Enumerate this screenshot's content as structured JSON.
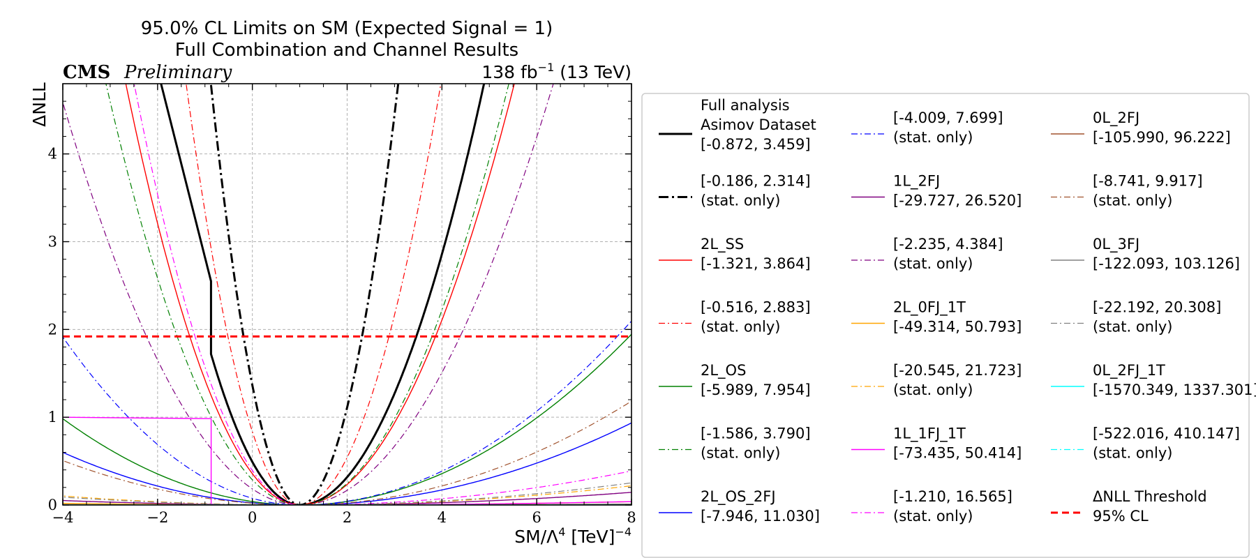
{
  "chart_data": {
    "type": "line",
    "title": "95.0% CL Limits on SM (Expected Signal = 1)",
    "subtitle": "Full Combination and Channel Results",
    "experiment": "CMS",
    "status": "Preliminary",
    "lumi": "138 fb",
    "lumi_exp": "−1",
    "energy": "(13 TeV)",
    "xlabel": "SM/Λ",
    "xlabel_exp": "4",
    "xlabel_unit": "[TeV]",
    "xlabel_unit_exp": "−4",
    "ylabel": "ΔNLL",
    "xlim": [
      -4,
      8
    ],
    "ylim": [
      0,
      4.8
    ],
    "xticks": [
      -4,
      -2,
      0,
      2,
      4,
      6,
      8
    ],
    "yticks": [
      0,
      1,
      2,
      3,
      4
    ],
    "xtick_labels": [
      "−4",
      "−2",
      "0",
      "2",
      "4",
      "6",
      "8"
    ],
    "ytick_labels": [
      "0",
      "1",
      "2",
      "3",
      "4"
    ],
    "grid": true,
    "legend_position": "right, outside plot",
    "threshold": {
      "value": 1.92,
      "label": "ΔNLL Threshold",
      "sublabel": "95% CL",
      "color": "#ff0000"
    },
    "best_fit": 1.0,
    "series": [
      {
        "name": "Full analysis",
        "name2": "Asimov Dataset",
        "interval": "[-0.872, 3.459]",
        "low": -0.872,
        "high": 3.459,
        "color": "#000000",
        "style": "solid",
        "width": 3,
        "kink": {
          "x": -0.872,
          "y_top": 2.55,
          "y_bottom": 1.72
        }
      },
      {
        "name": "",
        "interval": "[-0.186, 2.314]",
        "low": -0.186,
        "high": 2.314,
        "color": "#000000",
        "style": "dashdot",
        "width": 3,
        "stat_only": "(stat. only)"
      },
      {
        "name": "2L_SS",
        "interval": "[-1.321, 3.864]",
        "low": -1.321,
        "high": 3.864,
        "color": "#ff0000",
        "style": "solid",
        "width": 1.4
      },
      {
        "name": "",
        "interval": "[-0.516, 2.883]",
        "low": -0.516,
        "high": 2.883,
        "color": "#ff0000",
        "style": "dashdot",
        "width": 1.2,
        "stat_only": "(stat. only)"
      },
      {
        "name": "2L_OS",
        "interval": "[-5.989, 7.954]",
        "low": -5.989,
        "high": 7.954,
        "color": "#008000",
        "style": "solid",
        "width": 1.4
      },
      {
        "name": "",
        "interval": "[-1.586, 3.790]",
        "low": -1.586,
        "high": 3.79,
        "color": "#008000",
        "style": "dashdot",
        "width": 1.2,
        "stat_only": "(stat. only)"
      },
      {
        "name": "2L_OS_2FJ",
        "interval": "[-7.946, 11.030]",
        "low": -7.946,
        "high": 11.03,
        "color": "#0000ff",
        "style": "solid",
        "width": 1.4
      },
      {
        "name": "",
        "interval": "[-4.009, 7.699]",
        "low": -4.009,
        "high": 7.699,
        "color": "#0000ff",
        "style": "dashdot",
        "width": 1.2,
        "stat_only": "(stat. only)"
      },
      {
        "name": "1L_2FJ",
        "interval": "[-29.727, 26.520]",
        "low": -29.727,
        "high": 26.52,
        "color": "#800080",
        "style": "solid",
        "width": 1.4
      },
      {
        "name": "",
        "interval": "[-2.235, 4.384]",
        "low": -2.235,
        "high": 4.384,
        "color": "#800080",
        "style": "dashdot",
        "width": 1.2,
        "stat_only": "(stat. only)"
      },
      {
        "name": "2L_0FJ_1T",
        "interval": "[-49.314, 50.793]",
        "low": -49.314,
        "high": 50.793,
        "color": "#ffa500",
        "style": "solid",
        "width": 1.4
      },
      {
        "name": "",
        "interval": "[-20.545, 21.723]",
        "low": -20.545,
        "high": 21.723,
        "color": "#ffa500",
        "style": "dashdot",
        "width": 1.2,
        "stat_only": "(stat. only)"
      },
      {
        "name": "1L_1FJ_1T",
        "interval": "[-73.435, 50.414]",
        "low": -73.435,
        "high": 50.414,
        "color": "#ff00ff",
        "style": "solid",
        "width": 1.4,
        "step": {
          "x1": -0.87,
          "y1": 1.0,
          "x2": -0.87,
          "y2": 0.18
        }
      },
      {
        "name": "",
        "interval": "[-1.210, 16.565]",
        "low": -1.21,
        "high": 16.565,
        "color": "#ff00ff",
        "style": "dashdot",
        "width": 1.2,
        "stat_only": "(stat. only)"
      },
      {
        "name": "0L_2FJ",
        "interval": "[-105.990, 96.222]",
        "low": -105.99,
        "high": 96.222,
        "color": "#a0522d",
        "style": "solid",
        "width": 1.4
      },
      {
        "name": "",
        "interval": "[-8.741, 9.917]",
        "low": -8.741,
        "high": 9.917,
        "color": "#a0522d",
        "style": "dashdot",
        "width": 1.2,
        "stat_only": "(stat. only)"
      },
      {
        "name": "0L_3FJ",
        "interval": "[-122.093, 103.126]",
        "low": -122.093,
        "high": 103.126,
        "color": "#808080",
        "style": "solid",
        "width": 1.4
      },
      {
        "name": "",
        "interval": "[-22.192, 20.308]",
        "low": -22.192,
        "high": 20.308,
        "color": "#808080",
        "style": "dashdot",
        "width": 1.2,
        "stat_only": "(stat. only)"
      },
      {
        "name": "0L_2FJ_1T",
        "interval": "[-1570.349, 1337.301]",
        "low": -1570.349,
        "high": 1337.301,
        "color": "#00ffff",
        "style": "solid",
        "width": 1.4
      },
      {
        "name": "",
        "interval": "[-522.016, 410.147]",
        "low": -522.016,
        "high": 410.147,
        "color": "#00ffff",
        "style": "dashdot",
        "width": 1.2,
        "stat_only": "(stat. only)"
      }
    ]
  }
}
